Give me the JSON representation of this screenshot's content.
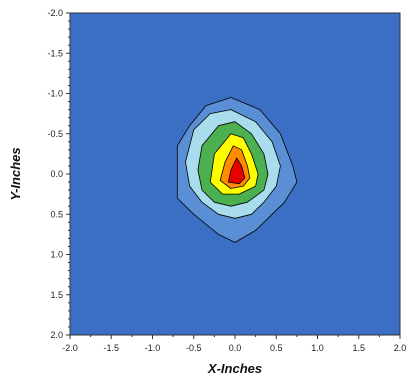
{
  "chart_data": {
    "type": "contour",
    "xlabel": "X-Inches",
    "ylabel": "Y-Inches",
    "xlim": [
      -2.0,
      2.0
    ],
    "ylim": [
      -2.0,
      2.0
    ],
    "y_axis_inverted": true,
    "grid": false,
    "x_ticks": [
      "-2.0",
      "-1.5",
      "-1.0",
      "-0.5",
      "0.0",
      "0.5",
      "1.0",
      "1.5",
      "2.0"
    ],
    "y_ticks": [
      "-2.0",
      "-1.5",
      "-1.0",
      "-0.5",
      "0.0",
      "0.5",
      "1.0",
      "1.5",
      "2.0"
    ],
    "background_color": "#3b6fc4",
    "levels": [
      {
        "color": "#5a8fd6",
        "points": [
          [
            -0.55,
            -0.6
          ],
          [
            -0.35,
            -0.85
          ],
          [
            -0.05,
            -0.95
          ],
          [
            0.3,
            -0.8
          ],
          [
            0.55,
            -0.5
          ],
          [
            0.7,
            -0.1
          ],
          [
            0.75,
            0.1
          ],
          [
            0.6,
            0.35
          ],
          [
            0.4,
            0.55
          ],
          [
            0.25,
            0.7
          ],
          [
            0.0,
            0.85
          ],
          [
            -0.2,
            0.75
          ],
          [
            -0.5,
            0.5
          ],
          [
            -0.7,
            0.3
          ],
          [
            -0.7,
            -0.35
          ]
        ]
      },
      {
        "color": "#a9dcec",
        "points": [
          [
            -0.5,
            -0.55
          ],
          [
            -0.3,
            -0.75
          ],
          [
            -0.05,
            -0.8
          ],
          [
            0.25,
            -0.65
          ],
          [
            0.45,
            -0.4
          ],
          [
            0.55,
            -0.1
          ],
          [
            0.5,
            0.15
          ],
          [
            0.35,
            0.35
          ],
          [
            0.2,
            0.5
          ],
          [
            0.0,
            0.55
          ],
          [
            -0.2,
            0.5
          ],
          [
            -0.4,
            0.35
          ],
          [
            -0.55,
            0.15
          ],
          [
            -0.6,
            -0.15
          ]
        ]
      },
      {
        "color": "#4caf50",
        "points": [
          [
            -0.4,
            -0.35
          ],
          [
            -0.2,
            -0.6
          ],
          [
            0.0,
            -0.65
          ],
          [
            0.2,
            -0.5
          ],
          [
            0.35,
            -0.25
          ],
          [
            0.4,
            0.0
          ],
          [
            0.35,
            0.2
          ],
          [
            0.15,
            0.35
          ],
          [
            -0.05,
            0.4
          ],
          [
            -0.25,
            0.35
          ],
          [
            -0.4,
            0.2
          ],
          [
            -0.45,
            -0.05
          ]
        ]
      },
      {
        "color": "#ffff00",
        "points": [
          [
            -0.25,
            -0.25
          ],
          [
            -0.05,
            -0.5
          ],
          [
            0.1,
            -0.45
          ],
          [
            0.2,
            -0.25
          ],
          [
            0.28,
            0.0
          ],
          [
            0.25,
            0.15
          ],
          [
            0.05,
            0.25
          ],
          [
            -0.15,
            0.25
          ],
          [
            -0.3,
            0.1
          ]
        ]
      },
      {
        "color": "#ff8c00",
        "points": [
          [
            -0.12,
            -0.15
          ],
          [
            -0.02,
            -0.35
          ],
          [
            0.08,
            -0.3
          ],
          [
            0.15,
            -0.1
          ],
          [
            0.18,
            0.05
          ],
          [
            0.1,
            0.15
          ],
          [
            -0.05,
            0.18
          ],
          [
            -0.18,
            0.08
          ]
        ]
      },
      {
        "color": "#e60000",
        "points": [
          [
            -0.05,
            -0.05
          ],
          [
            0.02,
            -0.2
          ],
          [
            0.08,
            -0.1
          ],
          [
            0.12,
            0.05
          ],
          [
            0.05,
            0.12
          ],
          [
            -0.08,
            0.1
          ]
        ]
      }
    ],
    "styles": {
      "line_color": "#000000",
      "axis_color": "#333333"
    }
  }
}
